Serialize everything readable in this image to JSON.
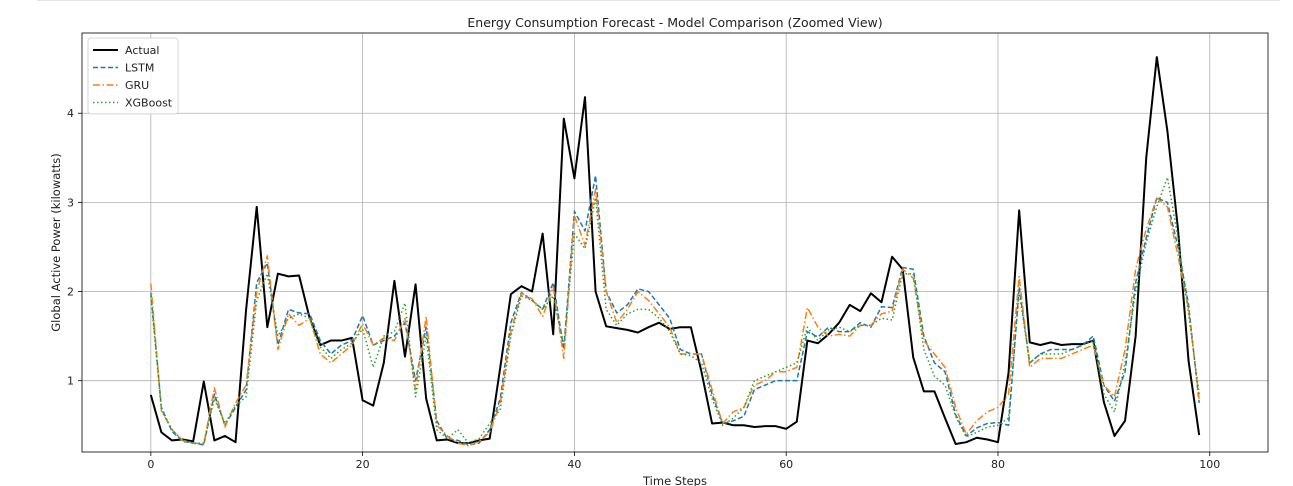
{
  "chart_data": {
    "type": "line",
    "title": "Energy Consumption Forecast - Model Comparison (Zoomed View)",
    "xlabel": "Time Steps",
    "ylabel": "Global Active Power (kilowatts)",
    "xlim": [
      -6.5,
      105.5
    ],
    "ylim": [
      0.2,
      4.9
    ],
    "xticks": [
      0,
      20,
      40,
      60,
      80,
      100
    ],
    "yticks": [
      1,
      2,
      3,
      4
    ],
    "grid": true,
    "legend_position": "top-left",
    "x": [
      0,
      1,
      2,
      3,
      4,
      5,
      6,
      7,
      8,
      9,
      10,
      11,
      12,
      13,
      14,
      15,
      16,
      17,
      18,
      19,
      20,
      21,
      22,
      23,
      24,
      25,
      26,
      27,
      28,
      29,
      30,
      31,
      32,
      33,
      34,
      35,
      36,
      37,
      38,
      39,
      40,
      41,
      42,
      43,
      44,
      45,
      46,
      47,
      48,
      49,
      50,
      51,
      52,
      53,
      54,
      55,
      56,
      57,
      58,
      59,
      60,
      61,
      62,
      63,
      64,
      65,
      66,
      67,
      68,
      69,
      70,
      71,
      72,
      73,
      74,
      75,
      76,
      77,
      78,
      79,
      80,
      81,
      82,
      83,
      84,
      85,
      86,
      87,
      88,
      89,
      90,
      91,
      92,
      93,
      94,
      95,
      96,
      97,
      98,
      99
    ],
    "series": [
      {
        "name": "Actual",
        "color": "#000000",
        "style": "solid",
        "values": [
          0.84,
          0.42,
          0.33,
          0.34,
          0.32,
          0.99,
          0.33,
          0.38,
          0.31,
          1.8,
          2.95,
          1.6,
          2.2,
          2.17,
          2.18,
          1.7,
          1.4,
          1.45,
          1.45,
          1.48,
          0.78,
          0.72,
          1.2,
          2.12,
          1.27,
          2.08,
          0.8,
          0.33,
          0.34,
          0.3,
          0.3,
          0.33,
          0.35,
          1.15,
          1.97,
          2.06,
          2.0,
          2.65,
          1.52,
          3.94,
          3.27,
          4.18,
          2.0,
          1.61,
          1.59,
          1.57,
          1.54,
          1.6,
          1.65,
          1.58,
          1.6,
          1.6,
          1.1,
          0.52,
          0.53,
          0.5,
          0.5,
          0.48,
          0.49,
          0.49,
          0.46,
          0.54,
          1.45,
          1.42,
          1.52,
          1.65,
          1.85,
          1.78,
          1.98,
          1.88,
          2.39,
          2.25,
          1.26,
          0.88,
          0.88,
          0.58,
          0.29,
          0.31,
          0.36,
          0.34,
          0.31,
          1.09,
          2.91,
          1.43,
          1.4,
          1.43,
          1.4,
          1.41,
          1.41,
          1.45,
          0.76,
          0.38,
          0.55,
          1.5,
          3.5,
          4.63,
          3.8,
          2.7,
          1.22,
          0.39
        ]
      },
      {
        "name": "LSTM",
        "color": "#1f77b4",
        "style": "dashed",
        "values": [
          1.99,
          0.7,
          0.43,
          0.32,
          0.3,
          0.28,
          0.85,
          0.5,
          0.7,
          0.9,
          2.1,
          2.32,
          1.4,
          1.8,
          1.76,
          1.75,
          1.45,
          1.3,
          1.4,
          1.45,
          1.73,
          1.4,
          1.45,
          1.5,
          1.65,
          1.0,
          1.6,
          0.55,
          0.35,
          0.33,
          0.28,
          0.3,
          0.45,
          0.8,
          1.65,
          1.99,
          1.9,
          1.8,
          2.1,
          1.35,
          2.9,
          2.68,
          3.3,
          2.0,
          1.76,
          1.85,
          2.03,
          2.0,
          1.85,
          1.7,
          1.35,
          1.3,
          1.3,
          0.85,
          0.52,
          0.55,
          0.6,
          0.9,
          0.95,
          1.0,
          1.0,
          1.0,
          1.55,
          1.49,
          1.6,
          1.55,
          1.55,
          1.65,
          1.6,
          1.83,
          1.82,
          2.27,
          2.25,
          1.5,
          1.2,
          1.1,
          0.62,
          0.38,
          0.47,
          0.52,
          0.53,
          0.5,
          2.05,
          1.2,
          1.3,
          1.35,
          1.35,
          1.35,
          1.4,
          1.5,
          0.95,
          0.77,
          1.1,
          2.1,
          2.6,
          3.05,
          3.0,
          2.5,
          1.85,
          0.75
        ]
      },
      {
        "name": "GRU",
        "color": "#ff7f0e",
        "style": "dashdot",
        "values": [
          2.09,
          0.66,
          0.45,
          0.33,
          0.3,
          0.29,
          0.92,
          0.48,
          0.75,
          0.95,
          2.0,
          2.4,
          1.35,
          1.75,
          1.62,
          1.7,
          1.3,
          1.2,
          1.3,
          1.4,
          1.64,
          1.4,
          1.48,
          1.45,
          1.7,
          0.9,
          1.72,
          0.5,
          0.38,
          0.3,
          0.27,
          0.32,
          0.42,
          0.75,
          1.55,
          1.98,
          1.92,
          1.72,
          2.05,
          1.25,
          2.85,
          2.52,
          3.15,
          2.0,
          1.65,
          1.8,
          2.0,
          1.9,
          1.75,
          1.6,
          1.3,
          1.3,
          1.3,
          0.9,
          0.52,
          0.65,
          0.7,
          0.95,
          1.0,
          1.1,
          1.1,
          1.15,
          1.82,
          1.6,
          1.5,
          1.52,
          1.5,
          1.62,
          1.62,
          1.75,
          1.78,
          2.25,
          2.15,
          1.45,
          1.3,
          1.15,
          0.7,
          0.4,
          0.55,
          0.65,
          0.7,
          0.85,
          2.17,
          1.15,
          1.25,
          1.25,
          1.25,
          1.3,
          1.35,
          1.4,
          0.95,
          0.82,
          1.35,
          2.25,
          2.7,
          3.05,
          2.95,
          2.4,
          1.8,
          0.79
        ]
      },
      {
        "name": "XGBoost",
        "color": "#2ca02c",
        "style": "dotted",
        "values": [
          1.95,
          0.67,
          0.45,
          0.33,
          0.3,
          0.3,
          0.8,
          0.52,
          0.72,
          0.82,
          1.9,
          2.2,
          1.5,
          1.7,
          1.75,
          1.7,
          1.38,
          1.25,
          1.35,
          1.42,
          1.58,
          1.15,
          1.5,
          1.55,
          1.87,
          0.82,
          1.5,
          0.45,
          0.35,
          0.45,
          0.3,
          0.35,
          0.52,
          0.68,
          1.5,
          1.95,
          1.9,
          1.8,
          1.95,
          1.4,
          2.65,
          2.48,
          3.05,
          1.8,
          1.62,
          1.75,
          1.8,
          1.8,
          1.7,
          1.55,
          1.3,
          1.28,
          1.2,
          0.8,
          0.5,
          0.58,
          0.7,
          1.0,
          1.05,
          1.1,
          1.15,
          1.2,
          1.6,
          1.45,
          1.57,
          1.6,
          1.55,
          1.62,
          1.62,
          1.7,
          1.68,
          2.2,
          2.2,
          1.35,
          1.05,
          0.95,
          0.6,
          0.37,
          0.42,
          0.48,
          0.5,
          0.58,
          2.0,
          1.2,
          1.3,
          1.3,
          1.3,
          1.35,
          1.4,
          1.45,
          0.85,
          0.65,
          1.2,
          2.0,
          2.55,
          2.95,
          3.28,
          2.6,
          1.75,
          0.85
        ]
      }
    ]
  }
}
